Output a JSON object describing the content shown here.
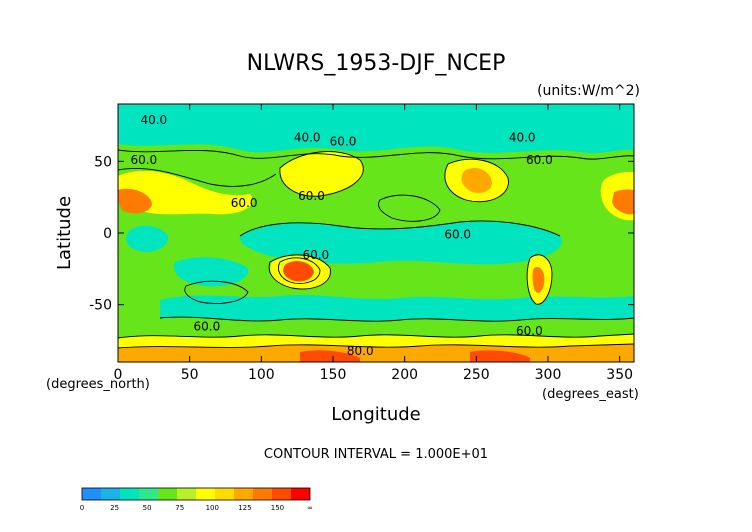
{
  "chart_data": {
    "type": "heatmap",
    "title": "NLWRS_1953-DJF_NCEP",
    "units_label": "(units:W/m^2)",
    "xlabel": "Longitude",
    "ylabel": "Latitude",
    "x_unit_label": "(degrees_east)",
    "y_unit_label": "(degrees_north)",
    "xlim": [
      0,
      360
    ],
    "ylim": [
      -90,
      90
    ],
    "x_ticks": [
      0,
      50,
      100,
      150,
      200,
      250,
      300,
      350
    ],
    "y_ticks": [
      -50,
      0,
      50
    ],
    "footer": "CONTOUR INTERVAL = 1.000E+01",
    "contour_interval": 10,
    "contour_labels": [
      {
        "lon": 25,
        "lat": 76,
        "text": "40.0"
      },
      {
        "lon": 18,
        "lat": 48,
        "text": "60.0"
      },
      {
        "lon": 88,
        "lat": 18,
        "text": "60.0"
      },
      {
        "lon": 132,
        "lat": 64,
        "text": "40.0"
      },
      {
        "lon": 157,
        "lat": 61,
        "text": "60.0"
      },
      {
        "lon": 135,
        "lat": 23,
        "text": "60.0"
      },
      {
        "lon": 294,
        "lat": 48,
        "text": "60.0"
      },
      {
        "lon": 282,
        "lat": 64,
        "text": "40.0"
      },
      {
        "lon": 237,
        "lat": -4,
        "text": "60.0"
      },
      {
        "lon": 138,
        "lat": -18,
        "text": "60.0"
      },
      {
        "lon": 62,
        "lat": -68,
        "text": "60.0"
      },
      {
        "lon": 287,
        "lat": -71,
        "text": "60.0"
      },
      {
        "lon": 169,
        "lat": -85,
        "text": "80.0"
      }
    ],
    "colorbar": {
      "labels": [
        "0",
        "25",
        "50",
        "75",
        "100",
        "125",
        "150",
        "∞"
      ],
      "colors": [
        "#1e90ff",
        "#18b4e6",
        "#00e5c0",
        "#2ee88a",
        "#66e61a",
        "#b8f028",
        "#ffff00",
        "#ffdc00",
        "#ffa800",
        "#ff7a00",
        "#ff4a00",
        "#ff0000"
      ]
    }
  }
}
